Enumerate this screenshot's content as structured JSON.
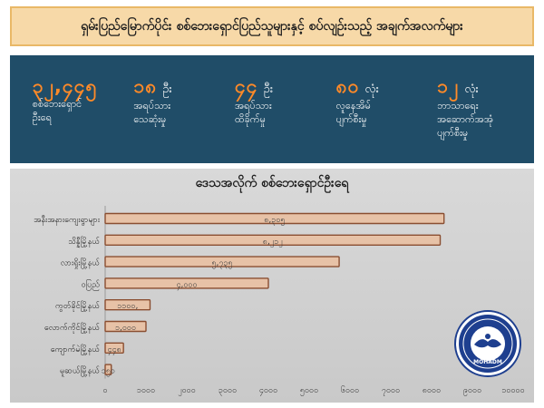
{
  "header": {
    "title": "ရှမ်းပြည်မြောက်ပိုင်း စစ်ဘေးရှောင်ပြည်သူများနှင့် စပ်လျဉ်းသည့် အချက်အလက်များ"
  },
  "stats": [
    {
      "number": "၃၂,၄၄၅",
      "unit": "",
      "label1": "စစ်ဘေးရှောင်",
      "label2": "ဦးရေ"
    },
    {
      "number": "၁၈",
      "unit": "ဦး",
      "label1": "အရပ်သား",
      "label2": "သေဆုံးမှု"
    },
    {
      "number": "၄၄",
      "unit": "ဦး",
      "label1": "အရပ်သား",
      "label2": "ထိခိုက်မှု"
    },
    {
      "number": "၈၀",
      "unit": "လုံး",
      "label1": "လူနေအိမ်",
      "label2": "ပျက်စီးမှု"
    },
    {
      "number": "၁၂",
      "unit": "လုံး",
      "label1": "ဘာသာရေး",
      "label2": "အဆောက်အအုံ",
      "label3": "ပျက်စီးမှု"
    }
  ],
  "logo": {
    "text": "MOHADM"
  },
  "chart_data": {
    "type": "bar",
    "orientation": "horizontal",
    "title": "ဒေသအလိုက် စစ်ဘေးရှောင်ဦးရေ",
    "categories": [
      "အနီးအနားကျေးရွာများ",
      "သိန္နီမြို့နယ်",
      "လားရှိုးမြို့နယ်",
      "ဝပြည်",
      "ကွတ်ခိုင်မြို့နယ်",
      "လောက်ကိုင်မြို့နယ်",
      "ကျောက်မဲမြို့နယ်",
      "မူဆယ်မြို့နယ်"
    ],
    "values": [
      8305,
      8212,
      5735,
      4000,
      1100,
      1000,
      448,
      150
    ],
    "value_labels": [
      "၈,၃၀၅",
      "၈,၂၁၂",
      "၅,၇၃၅",
      "၄,၀၀၀",
      "၁၁၀၀,",
      "၁,၀၀၀",
      "၄၄၈",
      "၁၅၀"
    ],
    "xlim": [
      0,
      10000
    ],
    "xticks": [
      0,
      1000,
      2000,
      3000,
      4000,
      5000,
      6000,
      7000,
      8000,
      9000,
      10000
    ],
    "xtick_labels": [
      "၀",
      "၁၀၀၀",
      "၂၀၀၀",
      "၃၀၀၀",
      "၄၀၀၀",
      "၅၀၀၀",
      "၆၀၀၀",
      "၇၀၀၀",
      "၈၀၀၀",
      "၉၀၀၀",
      "၁၀၀၀၀"
    ],
    "colors": {
      "bar_fill": "#e7c2a7",
      "bar_edge": "#8a4e31",
      "label_color": "#3a3a3a"
    }
  }
}
